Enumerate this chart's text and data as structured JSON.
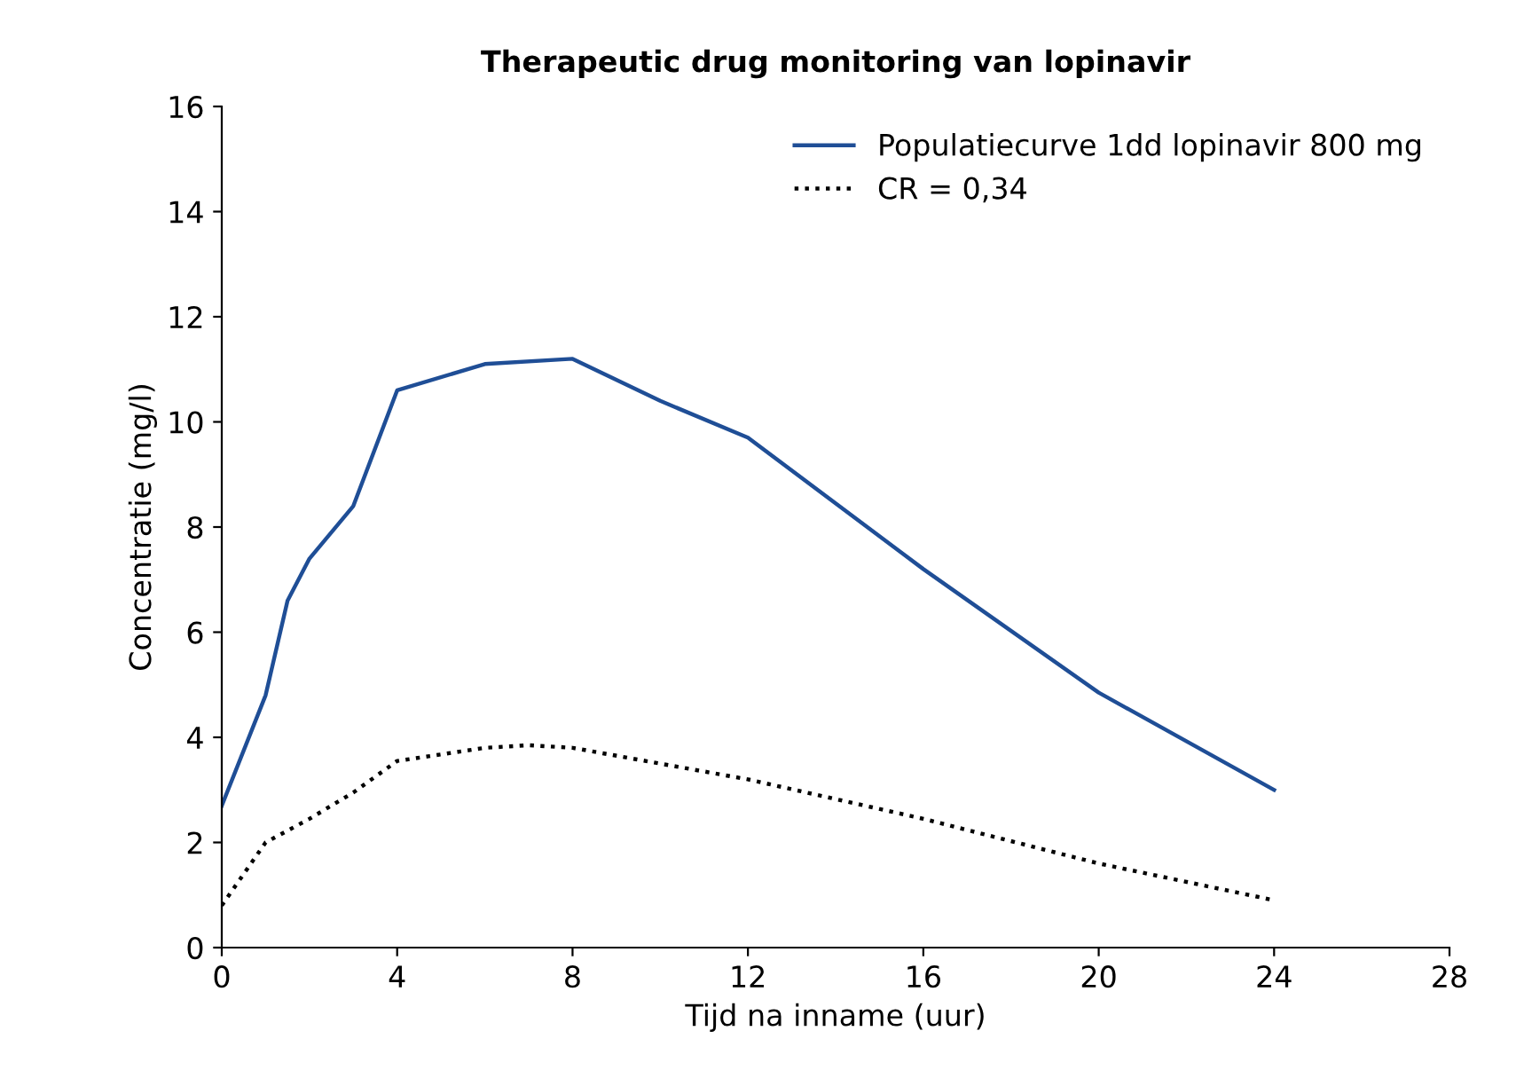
{
  "chart_data": {
    "type": "line",
    "title": "Therapeutic drug monitoring van lopinavir",
    "xlabel": "Tijd na inname (uur)",
    "ylabel": "Concentratie (mg/l)",
    "xlim": [
      0,
      28
    ],
    "xticks": [
      0,
      4,
      8,
      12,
      16,
      20,
      24,
      28
    ],
    "ylim": [
      0,
      16
    ],
    "yticks": [
      0,
      2,
      4,
      6,
      8,
      10,
      12,
      14,
      16
    ],
    "grid": false,
    "legend": "top right",
    "marker": "none",
    "series": [
      {
        "name": "Populatiecurve 1dd lopinavir 800 mg",
        "color": "#1f4e96",
        "line_style": "solid",
        "x": [
          0,
          1,
          1.5,
          2,
          3,
          4,
          6,
          8,
          10,
          12,
          16,
          20,
          24
        ],
        "values": [
          2.7,
          4.8,
          6.6,
          7.4,
          8.4,
          10.6,
          11.1,
          11.2,
          10.4,
          9.7,
          7.2,
          4.85,
          3.0
        ]
      },
      {
        "name": "CR = 0,34",
        "color": "#000000",
        "line_style": "dotted",
        "x": [
          0,
          1,
          2,
          3,
          4,
          6,
          7,
          8,
          10,
          12,
          16,
          20,
          24
        ],
        "values": [
          0.8,
          2.0,
          2.45,
          2.95,
          3.55,
          3.8,
          3.85,
          3.8,
          3.5,
          3.2,
          2.45,
          1.6,
          0.9
        ]
      }
    ]
  }
}
